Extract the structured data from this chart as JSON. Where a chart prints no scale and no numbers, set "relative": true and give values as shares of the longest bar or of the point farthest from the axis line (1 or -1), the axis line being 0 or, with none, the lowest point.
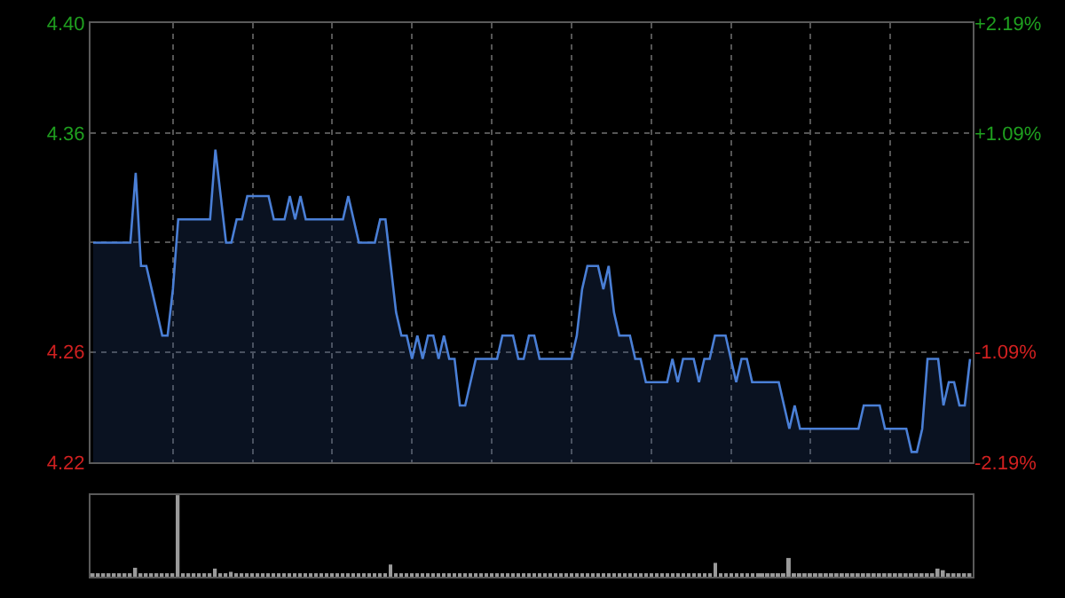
{
  "chart_data": [
    {
      "type": "area",
      "categories": [
        null,
        null,
        null,
        null,
        null,
        null,
        null,
        null,
        null,
        null,
        null,
        null,
        null,
        null,
        null,
        null,
        null,
        null,
        null,
        null,
        null,
        null,
        null,
        null,
        null,
        null,
        null,
        null,
        null,
        null,
        null,
        null,
        null,
        null,
        null,
        null,
        null,
        null,
        null,
        null,
        null,
        null,
        null,
        null,
        null,
        null,
        null,
        null,
        null,
        null,
        null,
        null,
        null,
        null,
        null,
        null,
        null,
        null,
        null,
        null,
        null,
        null,
        null,
        null,
        null,
        null,
        null,
        null,
        null,
        null,
        null,
        null,
        null,
        null,
        null,
        null,
        null,
        null,
        null,
        null,
        null,
        null,
        null,
        null,
        null,
        null,
        null,
        null,
        null,
        null,
        null,
        null,
        null,
        null,
        null,
        null,
        null,
        null,
        null,
        null,
        null,
        null,
        null,
        null,
        null,
        null,
        null,
        null,
        null,
        null,
        null,
        null,
        null,
        null,
        null,
        null,
        null,
        null,
        null,
        null,
        null,
        null,
        null,
        null,
        null,
        null,
        null,
        null,
        null,
        null,
        null,
        null,
        null,
        null,
        null,
        null,
        null,
        null,
        null,
        null,
        null,
        null,
        null,
        null,
        null,
        null,
        null,
        null,
        null,
        null,
        null,
        null,
        null,
        null,
        null,
        null,
        null,
        null,
        null,
        null,
        null,
        null,
        null,
        null,
        null,
        null
      ],
      "series": [
        {
          "color": "#4a7fd6",
          "values": [
            4.31,
            4.31,
            4.31,
            4.31,
            4.31,
            4.31,
            4.31,
            4.31,
            4.34,
            4.3,
            4.3,
            4.29,
            4.28,
            4.27,
            4.27,
            4.29,
            4.32,
            4.32,
            4.32,
            4.32,
            4.32,
            4.32,
            4.32,
            4.35,
            4.33,
            4.31,
            4.31,
            4.32,
            4.32,
            4.33,
            4.33,
            4.33,
            4.33,
            4.33,
            4.32,
            4.32,
            4.32,
            4.33,
            4.32,
            4.33,
            4.32,
            4.32,
            4.32,
            4.32,
            4.32,
            4.32,
            4.32,
            4.32,
            4.33,
            4.32,
            4.31,
            4.31,
            4.31,
            4.31,
            4.32,
            4.32,
            4.3,
            4.28,
            4.27,
            4.27,
            4.26,
            4.27,
            4.26,
            4.27,
            4.27,
            4.26,
            4.27,
            4.26,
            4.26,
            4.24,
            4.24,
            4.25,
            4.26,
            4.26,
            4.26,
            4.26,
            4.26,
            4.27,
            4.27,
            4.27,
            4.26,
            4.26,
            4.27,
            4.27,
            4.26,
            4.26,
            4.26,
            4.26,
            4.26,
            4.26,
            4.26,
            4.27,
            4.29,
            4.3,
            4.3,
            4.3,
            4.29,
            4.3,
            4.28,
            4.27,
            4.27,
            4.27,
            4.26,
            4.26,
            4.25,
            4.25,
            4.25,
            4.25,
            4.25,
            4.26,
            4.25,
            4.26,
            4.26,
            4.26,
            4.25,
            4.26,
            4.26,
            4.27,
            4.27,
            4.27,
            4.26,
            4.25,
            4.26,
            4.26,
            4.25,
            4.25,
            4.25,
            4.25,
            4.25,
            4.25,
            4.24,
            4.23,
            4.24,
            4.23,
            4.23,
            4.23,
            4.23,
            4.23,
            4.23,
            4.23,
            4.23,
            4.23,
            4.23,
            4.23,
            4.23,
            4.24,
            4.24,
            4.24,
            4.24,
            4.23,
            4.23,
            4.23,
            4.23,
            4.23,
            4.22,
            4.22,
            4.23,
            4.26,
            4.26,
            4.26,
            4.24,
            4.25,
            4.25,
            4.24,
            4.24,
            4.26
          ]
        }
      ],
      "ylim": [
        4.2156,
        4.4044
      ],
      "yticks": [
        {
          "value": 4.2156,
          "label": "4.22"
        },
        {
          "value": 4.263,
          "label": "4.26"
        },
        {
          "value": 4.31,
          "label": null
        },
        {
          "value": 4.357,
          "label": "4.36"
        },
        {
          "value": 4.4044,
          "label": "4.40"
        }
      ],
      "y2lim": [
        -2.19,
        2.19
      ],
      "y2ticks": [
        {
          "value": -2.19,
          "label": "-2.19%"
        },
        {
          "value": -1.09,
          "label": "-1.09%"
        },
        {
          "value": 0,
          "label": null
        },
        {
          "value": 1.09,
          "label": "+1.09%"
        },
        {
          "value": 2.19,
          "label": "+2.19%"
        }
      ],
      "grid": true,
      "legend": false
    },
    {
      "type": "bar",
      "relative": true,
      "categories": [
        null,
        null,
        null,
        null,
        null,
        null,
        null,
        null,
        null,
        null,
        null,
        null,
        null,
        null,
        null,
        null,
        null,
        null,
        null,
        null,
        null,
        null,
        null,
        null,
        null,
        null,
        null,
        null,
        null,
        null,
        null,
        null,
        null,
        null,
        null,
        null,
        null,
        null,
        null,
        null,
        null,
        null,
        null,
        null,
        null,
        null,
        null,
        null,
        null,
        null,
        null,
        null,
        null,
        null,
        null,
        null,
        null,
        null,
        null,
        null,
        null,
        null,
        null,
        null,
        null,
        null,
        null,
        null,
        null,
        null,
        null,
        null,
        null,
        null,
        null,
        null,
        null,
        null,
        null,
        null,
        null,
        null,
        null,
        null,
        null,
        null,
        null,
        null,
        null,
        null,
        null,
        null,
        null,
        null,
        null,
        null,
        null,
        null,
        null,
        null,
        null,
        null,
        null,
        null,
        null,
        null,
        null,
        null,
        null,
        null,
        null,
        null,
        null,
        null,
        null,
        null,
        null,
        null,
        null,
        null,
        null,
        null,
        null,
        null,
        null,
        null,
        null,
        null,
        null,
        null,
        null,
        null,
        null,
        null,
        null,
        null,
        null,
        null,
        null,
        null,
        null,
        null,
        null,
        null,
        null,
        null,
        null,
        null,
        null,
        null,
        null,
        null,
        null,
        null,
        null,
        null,
        null,
        null,
        null,
        null,
        null,
        null,
        null,
        null,
        null,
        null
      ],
      "series": [
        {
          "color": "#9a9a9a",
          "values": [
            0.03,
            0.03,
            0.03,
            0.03,
            0.03,
            0.03,
            0.03,
            0.03,
            0.11,
            0.03,
            0.03,
            0.03,
            0.03,
            0.03,
            0.03,
            0.03,
            1,
            0.03,
            0.03,
            0.03,
            0.03,
            0.03,
            0.03,
            0.1,
            0.03,
            0.03,
            0.06,
            0.03,
            0.03,
            0.03,
            0.03,
            0.03,
            0.03,
            0.03,
            0.03,
            0.03,
            0.03,
            0.03,
            0.03,
            0.03,
            0.03,
            0.03,
            0.03,
            0.03,
            0.03,
            0.03,
            0.03,
            0.03,
            0.03,
            0.03,
            0.03,
            0.03,
            0.03,
            0.03,
            0.03,
            0.03,
            0.15,
            0.03,
            0.03,
            0.03,
            0.03,
            0.03,
            0.03,
            0.03,
            0.03,
            0.03,
            0.03,
            0.03,
            0.03,
            0.03,
            0.03,
            0.03,
            0.03,
            0.03,
            0.03,
            0.03,
            0.03,
            0.03,
            0.03,
            0.03,
            0.03,
            0.03,
            0.03,
            0.03,
            0.03,
            0.03,
            0.03,
            0.03,
            0.03,
            0.03,
            0.03,
            0.03,
            0.03,
            0.03,
            0.03,
            0.03,
            0.03,
            0.03,
            0.03,
            0.03,
            0.03,
            0.03,
            0.03,
            0.03,
            0.03,
            0.03,
            0.03,
            0.03,
            0.03,
            0.03,
            0.03,
            0.03,
            0.03,
            0.03,
            0.03,
            0.03,
            0.03,
            0.17,
            0.03,
            0.03,
            0.03,
            0.03,
            0.03,
            0.03,
            0.03,
            0.03,
            0.03,
            0.03,
            0.03,
            0.03,
            0.03,
            0.23,
            0.03,
            0.03,
            0.03,
            0.03,
            0.03,
            0.03,
            0.03,
            0.03,
            0.03,
            0.03,
            0.03,
            0.03,
            0.03,
            0.03,
            0.03,
            0.03,
            0.03,
            0.03,
            0.03,
            0.03,
            0.03,
            0.03,
            0.03,
            0.03,
            0.03,
            0.03,
            0.03,
            0.1,
            0.08,
            0.03,
            0.03,
            0.03,
            0.03,
            0.03
          ]
        }
      ],
      "legend": false
    }
  ]
}
